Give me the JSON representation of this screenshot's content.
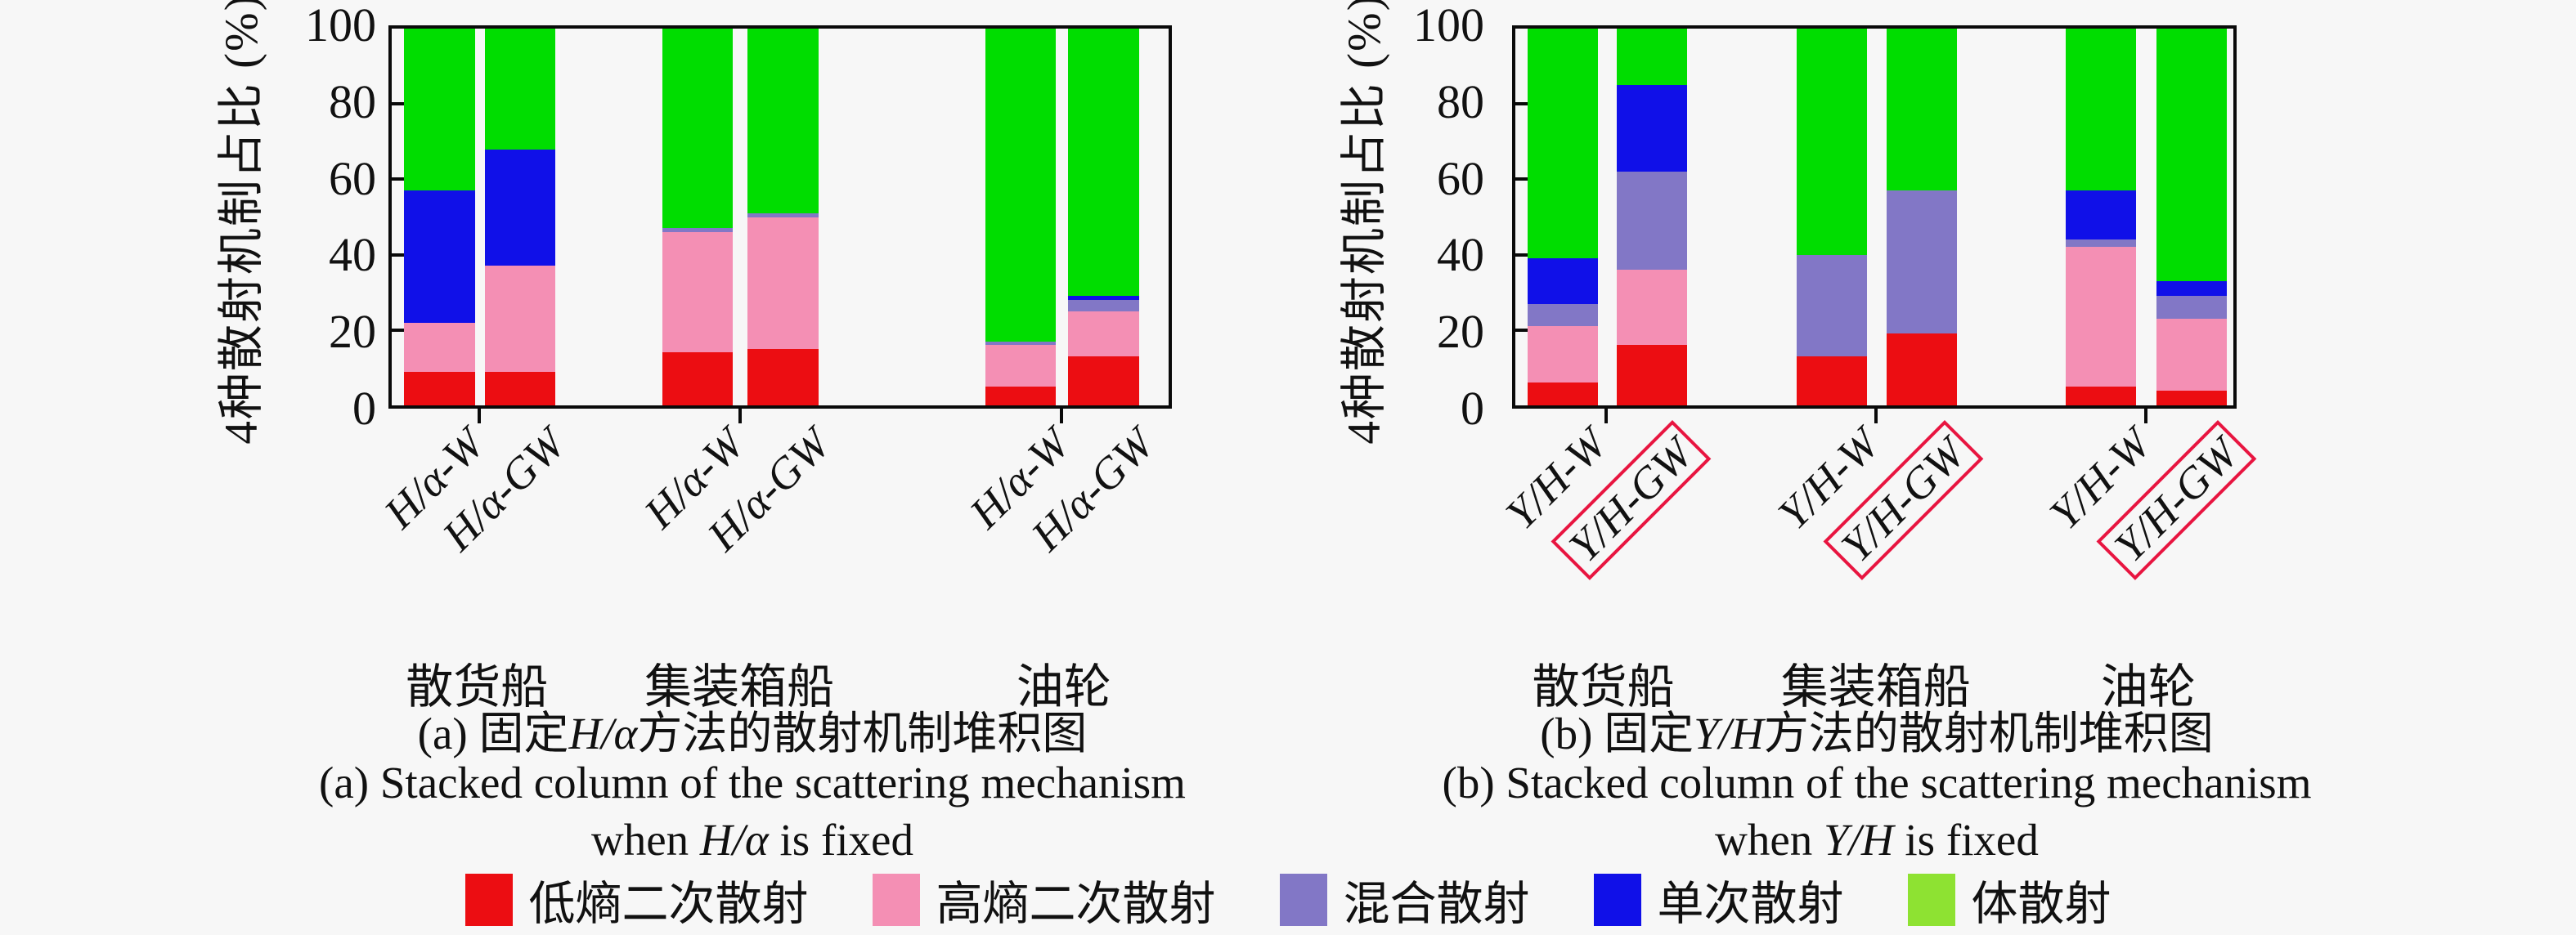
{
  "figure": {
    "background": "#f7f7f7"
  },
  "colors": {
    "red": "#ec0d12",
    "pink": "#f48fb4",
    "purple": "#8277c6",
    "blue": "#1010e8",
    "green": "#00dd00",
    "legend_green": "#8ee232",
    "axis": "#0a0a0a",
    "gw_box_border": "#e81540"
  },
  "legend": {
    "items": [
      {
        "label": "低熵二次散射",
        "color_key": "red"
      },
      {
        "label": "高熵二次散射",
        "color_key": "pink"
      },
      {
        "label": "混合散射",
        "color_key": "purple"
      },
      {
        "label": "单次散射",
        "color_key": "blue"
      },
      {
        "label": "体散射",
        "color_key": "legend_green"
      }
    ]
  },
  "charts": [
    {
      "panel": "a",
      "y_axis_label": "4种散射机制占比 (%)",
      "y_ticks": [
        0,
        20,
        40,
        60,
        80,
        100
      ],
      "groups": [
        "散货船",
        "集装箱船",
        "油轮"
      ],
      "bar_labels": [
        "H/α-W",
        "H/α-GW",
        "H/α-W",
        "H/α-GW",
        "H/α-W",
        "H/α-GW"
      ],
      "boxed": [
        false,
        false,
        false,
        false,
        false,
        false
      ],
      "caption_zh": {
        "prefix": "(a) 固定",
        "math": "H/α",
        "suffix": "方法的散射机制堆积图"
      },
      "caption_en_line1": "(a) Stacked column of the scattering mechanism",
      "caption_en_line2": {
        "prefix": "when ",
        "math": "H/α",
        "suffix": " is fixed"
      }
    },
    {
      "panel": "b",
      "y_axis_label": "4种散射机制占比 (%)",
      "y_ticks": [
        0,
        20,
        40,
        60,
        80,
        100
      ],
      "groups": [
        "散货船",
        "集装箱船",
        "油轮"
      ],
      "bar_labels": [
        "Y/H-W",
        "Y/H-GW",
        "Y/H-W",
        "Y/H-GW",
        "Y/H-W",
        "Y/H-GW"
      ],
      "boxed": [
        false,
        true,
        false,
        true,
        false,
        true
      ],
      "caption_zh": {
        "prefix": "(b) 固定",
        "math": "Y/H",
        "suffix": "方法的散射机制堆积图"
      },
      "caption_en_line1": "(b) Stacked column of the scattering mechanism",
      "caption_en_line2": {
        "prefix": "when ",
        "math": "Y/H",
        "suffix": " is fixed"
      }
    }
  ],
  "chart_data": [
    {
      "type": "bar",
      "stacked": true,
      "title": "(a) 固定H/α方法的散射机制堆积图",
      "subtitle": "(a) Stacked column of the scattering mechanism when H/α is fixed",
      "categories": [
        "散货船 H/α-W",
        "散货船 H/α-GW",
        "集装箱船 H/α-W",
        "集装箱船 H/α-GW",
        "油轮 H/α-W",
        "油轮 H/α-GW"
      ],
      "series": [
        {
          "name": "低熵二次散射",
          "color_key": "red",
          "values": [
            9,
            9,
            14,
            15,
            5,
            13
          ]
        },
        {
          "name": "高熵二次散射",
          "color_key": "pink",
          "values": [
            13,
            28,
            32,
            35,
            11,
            12
          ]
        },
        {
          "name": "混合散射",
          "color_key": "purple",
          "values": [
            0,
            0,
            1,
            1,
            1,
            3
          ]
        },
        {
          "name": "单次散射",
          "color_key": "blue",
          "values": [
            35,
            31,
            0,
            0,
            0,
            1
          ]
        },
        {
          "name": "体散射",
          "color_key": "green",
          "values": [
            43,
            32,
            53,
            49,
            83,
            71
          ]
        }
      ],
      "xlabel": "",
      "ylabel": "4种散射机制占比 (%)",
      "ylim": [
        0,
        100
      ],
      "grid": false,
      "legend_position": "bottom"
    },
    {
      "type": "bar",
      "stacked": true,
      "title": "(b) 固定Y/H方法的散射机制堆积图",
      "subtitle": "(b) Stacked column of the scattering mechanism when Y/H is fixed",
      "categories": [
        "散货船 Y/H-W",
        "散货船 Y/H-GW",
        "集装箱船 Y/H-W",
        "集装箱船 Y/H-GW",
        "油轮 Y/H-W",
        "油轮 Y/H-GW"
      ],
      "series": [
        {
          "name": "低熵二次散射",
          "color_key": "red",
          "values": [
            6,
            16,
            13,
            19,
            5,
            4
          ]
        },
        {
          "name": "高熵二次散射",
          "color_key": "pink",
          "values": [
            15,
            20,
            0,
            0,
            37,
            19
          ]
        },
        {
          "name": "混合散射",
          "color_key": "purple",
          "values": [
            6,
            26,
            27,
            38,
            2,
            6
          ]
        },
        {
          "name": "单次散射",
          "color_key": "blue",
          "values": [
            12,
            23,
            0,
            0,
            13,
            4
          ]
        },
        {
          "name": "体散射",
          "color_key": "green",
          "values": [
            61,
            15,
            60,
            43,
            43,
            67
          ]
        }
      ],
      "xlabel": "",
      "ylabel": "4种散射机制占比 (%)",
      "ylim": [
        0,
        100
      ],
      "grid": false,
      "legend_position": "bottom"
    }
  ]
}
